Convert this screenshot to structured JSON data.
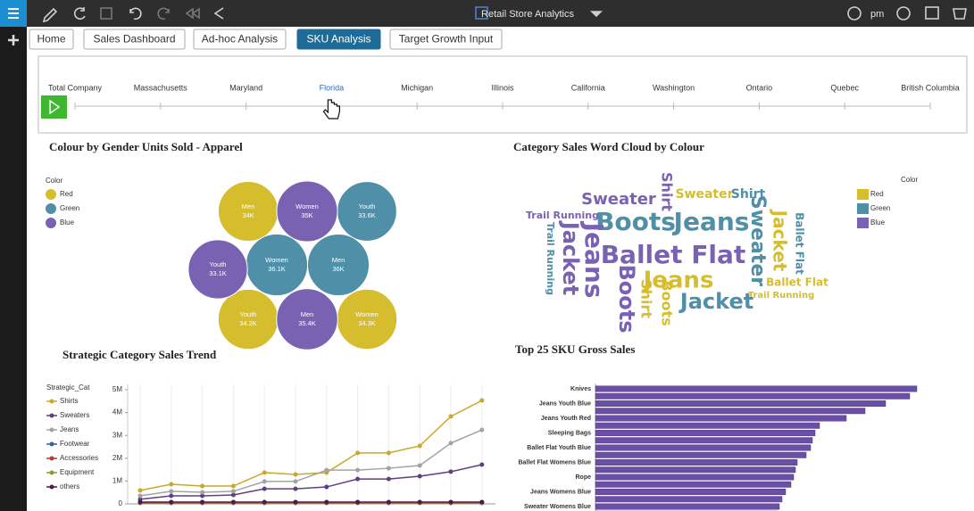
{
  "toolbar": {
    "title": "Retail Store Analytics",
    "user": "pm"
  },
  "tabs": [
    "Home",
    "Sales Dashboard",
    "Ad-hoc Analysis",
    "SKU Analysis",
    "Target Growth Input"
  ],
  "active_tab": 3,
  "slider": {
    "locations": [
      "Total Company",
      "Massachusetts",
      "Maryland",
      "Florida",
      "Michigan",
      "Illinois",
      "California",
      "Washington",
      "Ontario",
      "Quebec",
      "British Columbia"
    ],
    "selected": 3
  },
  "chart_data": [
    {
      "type": "bubble",
      "title": "Colour by Gender Units Sold - Apparel",
      "legend_title": "Color",
      "series": [
        {
          "name": "Red",
          "color": "#d5bd2e",
          "labels": [
            "Men",
            "Youth",
            "Women"
          ],
          "values": [
            34000,
            34200,
            34300
          ],
          "value_labels": [
            "34K",
            "34.2K",
            "34.3K"
          ]
        },
        {
          "name": "Green",
          "color": "#4f8fa7",
          "labels": [
            "Youth",
            "Women",
            "Men"
          ],
          "values": [
            33600,
            36100,
            36000
          ],
          "value_labels": [
            "33.6K",
            "36.1K",
            "36K"
          ]
        },
        {
          "name": "Blue",
          "color": "#7a62b3",
          "labels": [
            "Women",
            "Youth",
            "Men"
          ],
          "values": [
            35000,
            33100,
            35400
          ],
          "value_labels": [
            "35K",
            "33.1K",
            "35.4K"
          ]
        }
      ]
    },
    {
      "type": "wordcloud",
      "title": "Category Sales Word Cloud by Colour",
      "legend_title": "Color",
      "legend": [
        {
          "name": "Red",
          "color": "#d5bd2e"
        },
        {
          "name": "Green",
          "color": "#4f8fa7"
        },
        {
          "name": "Blue",
          "color": "#7a62b3"
        }
      ],
      "words": [
        {
          "text": "Shirt",
          "color": "#7a62b3"
        },
        {
          "text": "Sweater",
          "color": "#7a62b3"
        },
        {
          "text": "Sweater",
          "color": "#d5bd2e"
        },
        {
          "text": "Shirt",
          "color": "#4f8fa7"
        },
        {
          "text": "Trail Running",
          "color": "#7a62b3"
        },
        {
          "text": "Boots",
          "color": "#4f8fa7"
        },
        {
          "text": "Jeans",
          "color": "#4f8fa7"
        },
        {
          "text": "Sweater",
          "color": "#4f8fa7"
        },
        {
          "text": "Jacket",
          "color": "#d5bd2e"
        },
        {
          "text": "Ballet Flat",
          "color": "#4f8fa7"
        },
        {
          "text": "Jeans",
          "color": "#7a62b3"
        },
        {
          "text": "Jacket",
          "color": "#7a62b3"
        },
        {
          "text": "Trail Running",
          "color": "#4f8fa7"
        },
        {
          "text": "Ballet Flat",
          "color": "#7a62b3"
        },
        {
          "text": "Jeans",
          "color": "#d5bd2e"
        },
        {
          "text": "Ballet Flat",
          "color": "#d5bd2e"
        },
        {
          "text": "Trail Running",
          "color": "#d5bd2e"
        },
        {
          "text": "Boots",
          "color": "#7a62b3"
        },
        {
          "text": "Shirt",
          "color": "#d5bd2e"
        },
        {
          "text": "Boots",
          "color": "#d5bd2e"
        },
        {
          "text": "Jacket",
          "color": "#4f8fa7"
        }
      ]
    },
    {
      "type": "line",
      "title": "Strategic Category Sales Trend",
      "legend_title": "Strategic_Cat",
      "categories": [
        null,
        null,
        null,
        null,
        null,
        null,
        null,
        null,
        null,
        null,
        null,
        null
      ],
      "ylim": [
        0,
        5000000
      ],
      "yticks": [
        0,
        {
          "value": 1000000,
          "label": "1M"
        },
        {
          "value": 2000000,
          "label": "2M"
        },
        {
          "value": 3000000,
          "label": "3M"
        },
        {
          "value": 4000000,
          "label": "4M"
        },
        {
          "value": 5000000,
          "label": "5M"
        }
      ],
      "series": [
        {
          "name": "Shirts",
          "color": "#c9a92b",
          "values": [
            590000,
            860000,
            780000,
            780000,
            1370000,
            1290000,
            1370000,
            2230000,
            2230000,
            2540000,
            3830000,
            4530000
          ]
        },
        {
          "name": "Sweaters",
          "color": "#5e3f80",
          "values": [
            200000,
            350000,
            350000,
            390000,
            660000,
            660000,
            740000,
            1090000,
            1090000,
            1210000,
            1410000,
            1720000
          ]
        },
        {
          "name": "Jeans",
          "color": "#a3a3a3",
          "values": [
            350000,
            550000,
            510000,
            550000,
            980000,
            980000,
            1480000,
            1480000,
            1560000,
            1680000,
            2660000,
            3240000
          ]
        },
        {
          "name": "Footwear",
          "color": "#3b5ba3",
          "values": [
            50000,
            50000,
            50000,
            50000,
            50000,
            50000,
            50000,
            50000,
            50000,
            50000,
            50000,
            50000
          ]
        },
        {
          "name": "Accessories",
          "color": "#b23b3b",
          "values": [
            40000,
            40000,
            40000,
            40000,
            40000,
            40000,
            40000,
            40000,
            40000,
            40000,
            40000,
            40000
          ]
        },
        {
          "name": "Equipment",
          "color": "#8a9f2b",
          "values": [
            60000,
            60000,
            60000,
            60000,
            60000,
            60000,
            60000,
            60000,
            60000,
            60000,
            60000,
            60000
          ]
        },
        {
          "name": "others",
          "color": "#4a1c4a",
          "values": [
            80000,
            80000,
            80000,
            80000,
            80000,
            80000,
            80000,
            80000,
            80000,
            80000,
            80000,
            80000
          ]
        }
      ]
    },
    {
      "type": "hbar",
      "title": "Top 25 SKU Gross Sales",
      "categories": [
        "Knives",
        null,
        "Jeans Youth Blue",
        null,
        "Jeans Youth Red",
        null,
        "Sleeping Bags",
        null,
        "Ballet Flat Youth Blue",
        null,
        "Ballet Flat Womens Blue",
        null,
        "Rope",
        null,
        "Jeans Womens Blue",
        null,
        "Sweater Womens Blue",
        null
      ],
      "values": [
        360,
        352,
        325,
        302,
        281,
        251,
        246,
        243,
        241,
        236,
        226,
        224,
        222,
        219,
        213,
        209,
        206,
        203
      ],
      "color": "#6b4fa6"
    }
  ]
}
